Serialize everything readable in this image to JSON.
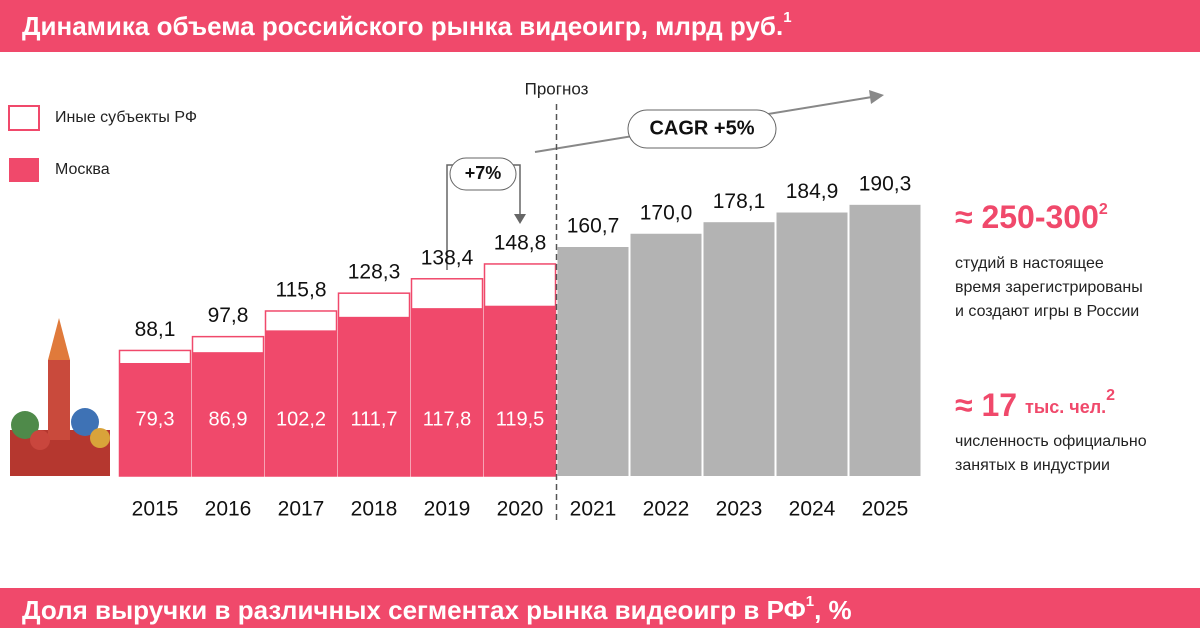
{
  "title": "Динамика объема российского рынка видеоигр, млрд руб.",
  "title_note": "1",
  "chart_data": {
    "type": "bar",
    "categories": [
      "2015",
      "2016",
      "2017",
      "2018",
      "2019",
      "2020",
      "2021",
      "2022",
      "2023",
      "2024",
      "2025"
    ],
    "totals": {
      "name": "Иные субъекты РФ",
      "color": "#ffffff",
      "stroke": "#f0496b",
      "values": [
        88.1,
        97.8,
        115.8,
        128.3,
        138.4,
        148.8,
        160.7,
        170.0,
        178.1,
        184.9,
        190.3
      ],
      "value_labels": [
        "88,1",
        "97,8",
        "115,8",
        "128,3",
        "138,4",
        "148,8",
        "160,7",
        "170,0",
        "178,1",
        "184,9",
        "190,3"
      ]
    },
    "series": [
      {
        "name": "Москва",
        "color": "#f0496b",
        "values": [
          79.3,
          86.9,
          102.2,
          111.7,
          117.8,
          119.5,
          null,
          null,
          null,
          null,
          null
        ],
        "value_labels": [
          "79,3",
          "86,9",
          "102,2",
          "111,7",
          "117,8",
          "119,5",
          null,
          null,
          null,
          null,
          null
        ]
      }
    ],
    "forecast_color": "#b3b3b3",
    "ylim": [
      0,
      200
    ],
    "forecast_label": "Прогноз",
    "growth_label": "+7%",
    "cagr_label": "CAGR +5%"
  },
  "stats": [
    {
      "value": "≈ 250-300",
      "note": "2",
      "lines": [
        "студий в настоящее",
        "время зарегистрированы",
        "и создают игры в России"
      ]
    },
    {
      "value": "≈ 17",
      "unit": "тыс. чел.",
      "note": "2",
      "lines": [
        "численность официально",
        "занятых в индустрии"
      ]
    }
  ],
  "footer_title": "Доля выручки в различных сегментах рынка видеоигр в РФ",
  "footer_note": "1",
  "footer_suffix": ", %"
}
